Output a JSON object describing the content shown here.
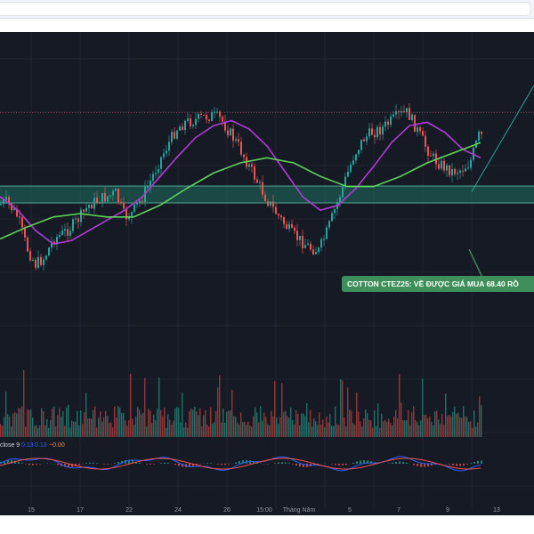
{
  "colors": {
    "background": "#161a25",
    "up": "#26a69a",
    "down": "#ef5350",
    "ma_fast": "#b13bd6",
    "ma_slow": "#5fd35a",
    "zone": "#1f6f5e",
    "callout": "#3e8f5a",
    "signal_line": "#ef5350",
    "macd_line": "#2962ff"
  },
  "callout": {
    "text": "COTTON CTEZ25: VỀ ĐƯỢC GIÁ MUA 68.40 RỒ"
  },
  "indicator": {
    "label_prefix": "close 9",
    "value_1": "0.13",
    "value_2": "0.13",
    "value_3": "−0.00"
  },
  "chart_data": {
    "type": "candlestick",
    "x_tick_labels": [
      "15",
      "17",
      "22",
      "24",
      "26",
      "15:00",
      "Tháng Năm",
      "5",
      "7",
      "9",
      "13"
    ],
    "y_axis_labels": [],
    "price_series": {
      "name": "",
      "path_shape": [
        [
          0,
          0.55
        ],
        [
          10,
          0.53
        ],
        [
          22,
          0.62
        ],
        [
          32,
          0.8
        ],
        [
          42,
          0.9
        ],
        [
          52,
          0.86
        ],
        [
          62,
          0.75
        ],
        [
          72,
          0.72
        ],
        [
          82,
          0.68
        ],
        [
          92,
          0.62
        ],
        [
          102,
          0.55
        ],
        [
          112,
          0.52
        ],
        [
          122,
          0.5
        ],
        [
          132,
          0.48
        ],
        [
          142,
          0.62
        ],
        [
          150,
          0.6
        ],
        [
          160,
          0.52
        ],
        [
          170,
          0.42
        ],
        [
          180,
          0.3
        ],
        [
          190,
          0.2
        ],
        [
          200,
          0.1
        ],
        [
          210,
          0.06
        ],
        [
          220,
          0.05
        ],
        [
          230,
          0.03
        ],
        [
          240,
          0.02
        ],
        [
          250,
          0.04
        ],
        [
          260,
          0.12
        ],
        [
          270,
          0.2
        ],
        [
          280,
          0.3
        ],
        [
          290,
          0.4
        ],
        [
          300,
          0.5
        ],
        [
          310,
          0.58
        ],
        [
          320,
          0.65
        ],
        [
          330,
          0.72
        ],
        [
          340,
          0.76
        ],
        [
          350,
          0.8
        ],
        [
          360,
          0.82
        ],
        [
          370,
          0.7
        ],
        [
          380,
          0.55
        ],
        [
          390,
          0.4
        ],
        [
          400,
          0.25
        ],
        [
          410,
          0.16
        ],
        [
          420,
          0.12
        ],
        [
          430,
          0.1
        ],
        [
          440,
          0.06
        ],
        [
          450,
          0.02
        ],
        [
          460,
          0.0
        ],
        [
          470,
          0.1
        ],
        [
          480,
          0.2
        ],
        [
          490,
          0.28
        ],
        [
          500,
          0.32
        ],
        [
          510,
          0.35
        ],
        [
          520,
          0.34
        ],
        [
          530,
          0.3
        ],
        [
          540,
          0.14
        ]
      ]
    },
    "moving_averages": [
      {
        "name": "",
        "color": "#b13bd6",
        "path_shape": [
          [
            0,
            0.5
          ],
          [
            20,
            0.58
          ],
          [
            40,
            0.7
          ],
          [
            60,
            0.78
          ],
          [
            80,
            0.76
          ],
          [
            100,
            0.7
          ],
          [
            120,
            0.64
          ],
          [
            140,
            0.58
          ],
          [
            160,
            0.5
          ],
          [
            180,
            0.38
          ],
          [
            200,
            0.26
          ],
          [
            220,
            0.15
          ],
          [
            240,
            0.08
          ],
          [
            260,
            0.05
          ],
          [
            280,
            0.1
          ],
          [
            300,
            0.2
          ],
          [
            320,
            0.35
          ],
          [
            340,
            0.5
          ],
          [
            360,
            0.58
          ],
          [
            380,
            0.55
          ],
          [
            400,
            0.45
          ],
          [
            420,
            0.32
          ],
          [
            440,
            0.18
          ],
          [
            460,
            0.08
          ],
          [
            480,
            0.06
          ],
          [
            500,
            0.12
          ],
          [
            520,
            0.22
          ],
          [
            540,
            0.27
          ]
        ]
      },
      {
        "name": "",
        "color": "#5fd35a",
        "path_shape": [
          [
            0,
            0.75
          ],
          [
            30,
            0.68
          ],
          [
            60,
            0.62
          ],
          [
            90,
            0.6
          ],
          [
            120,
            0.62
          ],
          [
            150,
            0.62
          ],
          [
            180,
            0.55
          ],
          [
            210,
            0.45
          ],
          [
            240,
            0.36
          ],
          [
            270,
            0.3
          ],
          [
            300,
            0.27
          ],
          [
            330,
            0.3
          ],
          [
            360,
            0.38
          ],
          [
            390,
            0.44
          ],
          [
            420,
            0.44
          ],
          [
            450,
            0.38
          ],
          [
            480,
            0.3
          ],
          [
            510,
            0.24
          ],
          [
            540,
            0.18
          ]
        ]
      }
    ],
    "zone": {
      "label": "",
      "top_shape": 0.4,
      "bottom_shape": 0.48
    },
    "horizontal_level_shape": 0.16,
    "trend_projection": {
      "from_shape": [
        530,
        0.47
      ],
      "to_shape": [
        600,
        0.0
      ]
    }
  }
}
